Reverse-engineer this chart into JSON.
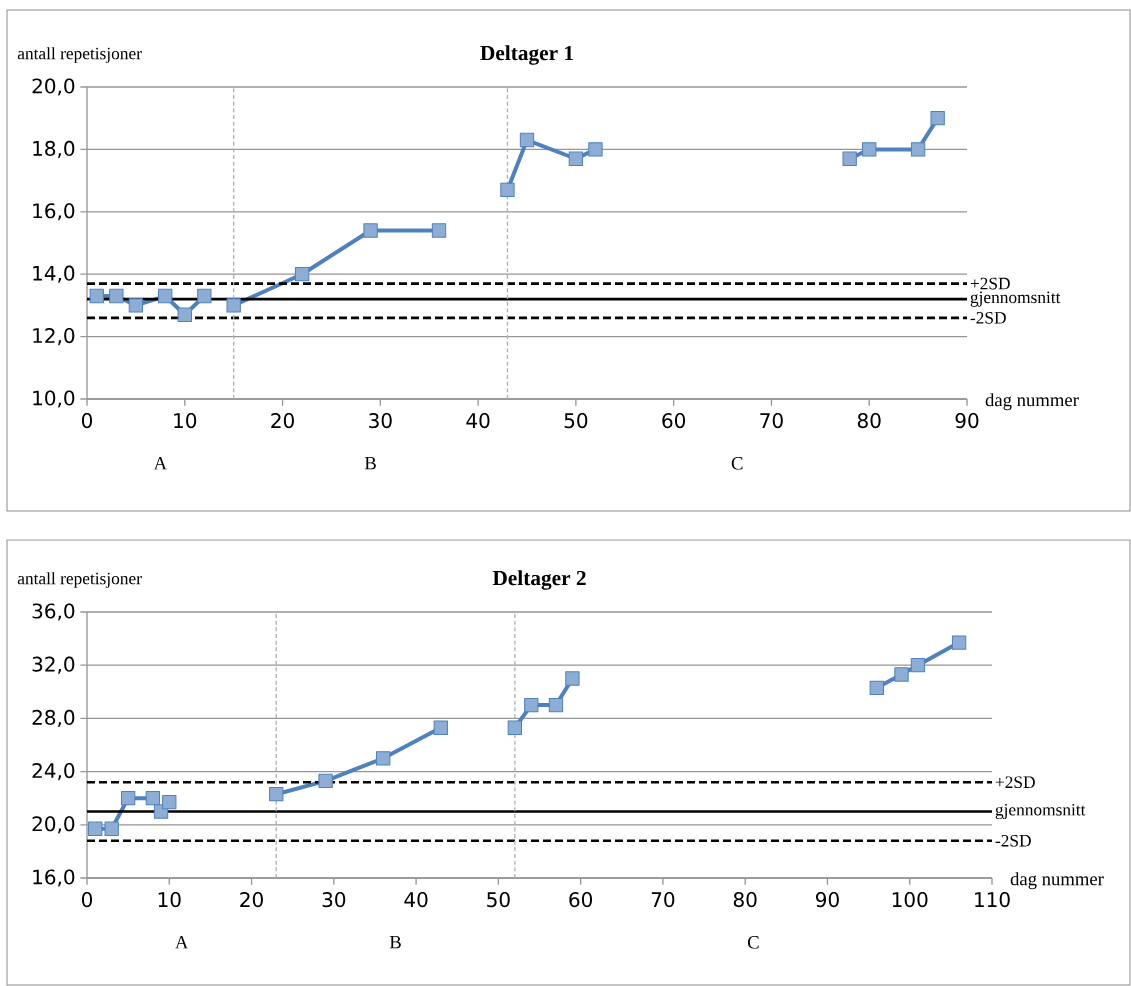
{
  "chart_data": [
    {
      "type": "line",
      "title": "Deltager 1",
      "ylabel": "antall repetisjoner",
      "xlabel": "dag nummer",
      "marker": "square",
      "grid": "y",
      "xlim": [
        0,
        90
      ],
      "xticks": [
        0,
        10,
        20,
        30,
        40,
        50,
        60,
        70,
        80,
        90
      ],
      "ylim": [
        10,
        20
      ],
      "yticks": [
        {
          "value": 10,
          "label": "10,0"
        },
        {
          "value": 12,
          "label": "12,0"
        },
        {
          "value": 14,
          "label": "14,0"
        },
        {
          "value": 16,
          "label": "16,0"
        },
        {
          "value": 18,
          "label": "18,0"
        },
        {
          "value": 20,
          "label": "20,0"
        }
      ],
      "series": [
        {
          "color": "#4f81bd",
          "x": [
            1,
            3,
            5,
            8,
            10,
            12
          ],
          "values": [
            13.3,
            13.3,
            13.0,
            13.3,
            12.7,
            13.3
          ]
        },
        {
          "color": "#4f81bd",
          "x": [
            15,
            22,
            29,
            36
          ],
          "values": [
            13.0,
            14.0,
            15.4,
            15.4
          ]
        },
        {
          "color": "#4f81bd",
          "x": [
            43,
            45,
            50,
            52
          ],
          "values": [
            16.7,
            18.3,
            17.7,
            18.0
          ]
        },
        {
          "color": "#4f81bd",
          "x": [
            78,
            80,
            85,
            87
          ],
          "values": [
            17.7,
            18.0,
            18.0,
            19.0
          ]
        }
      ],
      "ref_lines": [
        {
          "axis": "y",
          "value": 13.7,
          "label": "+2SD",
          "color": "#000000",
          "line_style": "dashed"
        },
        {
          "axis": "y",
          "value": 13.2,
          "label": "gjennomsnitt",
          "color": "#000000",
          "line_style": "solid"
        },
        {
          "axis": "y",
          "value": 12.6,
          "label": "-2SD",
          "color": "#000000",
          "line_style": "dashed"
        },
        {
          "axis": "x",
          "value": 15,
          "color": "#b0b0b0",
          "line_style": "dashed"
        },
        {
          "axis": "x",
          "value": 43,
          "color": "#b0b0b0",
          "line_style": "dashed"
        }
      ],
      "annotations": [
        "A",
        "B",
        "C"
      ]
    },
    {
      "type": "line",
      "title": "Deltager 2",
      "ylabel": "antall repetisjoner",
      "xlabel": "dag nummer",
      "marker": "square",
      "grid": "y",
      "xlim": [
        0,
        110
      ],
      "xticks": [
        0,
        10,
        20,
        30,
        40,
        50,
        60,
        70,
        80,
        90,
        100,
        110
      ],
      "ylim": [
        16,
        36
      ],
      "yticks": [
        {
          "value": 16,
          "label": "16,0"
        },
        {
          "value": 20,
          "label": "20,0"
        },
        {
          "value": 24,
          "label": "24,0"
        },
        {
          "value": 28,
          "label": "28,0"
        },
        {
          "value": 32,
          "label": "32,0"
        },
        {
          "value": 36,
          "label": "36,0"
        }
      ],
      "series": [
        {
          "color": "#4f81bd",
          "x": [
            1,
            3,
            5,
            8,
            9,
            10
          ],
          "values": [
            19.7,
            19.7,
            22.0,
            22.0,
            21.0,
            21.7
          ]
        },
        {
          "color": "#4f81bd",
          "x": [
            23,
            29,
            36,
            43
          ],
          "values": [
            22.3,
            23.3,
            25.0,
            27.3
          ]
        },
        {
          "color": "#4f81bd",
          "x": [
            52,
            54,
            57,
            59
          ],
          "values": [
            27.3,
            29.0,
            29.0,
            31.0
          ]
        },
        {
          "color": "#4f81bd",
          "x": [
            96,
            99,
            101,
            106
          ],
          "values": [
            30.3,
            31.3,
            32.0,
            33.7
          ]
        }
      ],
      "ref_lines": [
        {
          "axis": "y",
          "value": 23.2,
          "label": "+2SD",
          "color": "#000000",
          "line_style": "dashed"
        },
        {
          "axis": "y",
          "value": 21.0,
          "label": "gjennomsnitt",
          "color": "#000000",
          "line_style": "solid"
        },
        {
          "axis": "y",
          "value": 18.8,
          "label": "-2SD",
          "color": "#000000",
          "line_style": "dashed"
        },
        {
          "axis": "x",
          "value": 23,
          "color": "#b0b0b0",
          "line_style": "dashed"
        },
        {
          "axis": "x",
          "value": 52,
          "color": "#b0b0b0",
          "line_style": "dashed"
        }
      ],
      "annotations": [
        "A",
        "B",
        "C"
      ]
    }
  ]
}
